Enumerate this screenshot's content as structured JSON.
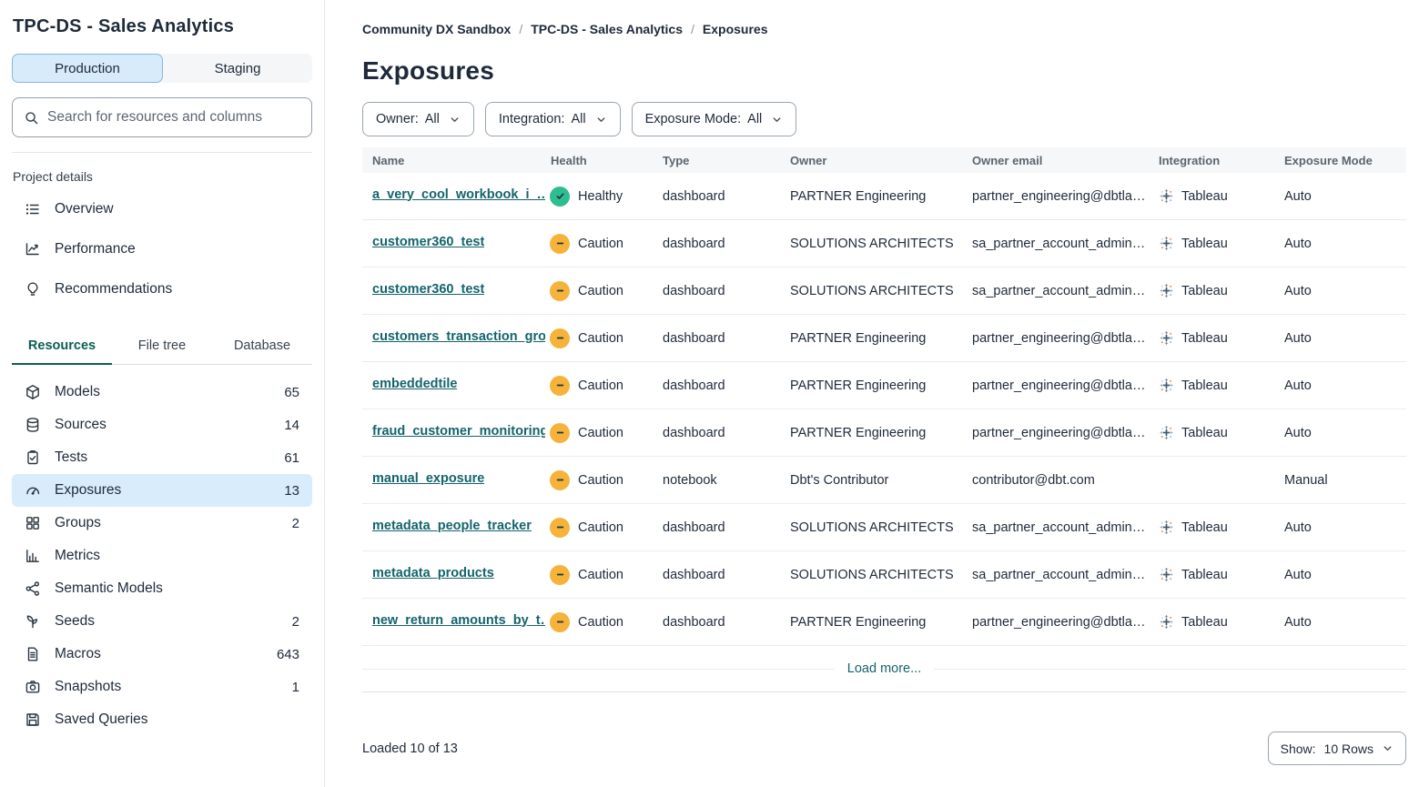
{
  "colors": {
    "link": "#14646b",
    "tab_active": "#0a5f54",
    "selected_bg": "#d9ecfb",
    "healthy": "#2ebd8e",
    "caution": "#f6b239"
  },
  "sidebar": {
    "title": "TPC-DS - Sales Analytics",
    "env_tabs": [
      {
        "label": "Production",
        "active": true
      },
      {
        "label": "Staging",
        "active": false
      }
    ],
    "search_placeholder": "Search for resources and columns",
    "section_label": "Project details",
    "project_links": [
      {
        "label": "Overview",
        "icon": "list-icon"
      },
      {
        "label": "Performance",
        "icon": "chart-line-icon"
      },
      {
        "label": "Recommendations",
        "icon": "lightbulb-icon"
      }
    ],
    "tabs": [
      {
        "label": "Resources",
        "active": true
      },
      {
        "label": "File tree",
        "active": false
      },
      {
        "label": "Database",
        "active": false
      }
    ],
    "resources": [
      {
        "label": "Models",
        "count": "65",
        "icon": "cube-icon",
        "selected": false
      },
      {
        "label": "Sources",
        "count": "14",
        "icon": "database-icon",
        "selected": false
      },
      {
        "label": "Tests",
        "count": "61",
        "icon": "clipboard-check-icon",
        "selected": false
      },
      {
        "label": "Exposures",
        "count": "13",
        "icon": "gauge-icon",
        "selected": true
      },
      {
        "label": "Groups",
        "count": "2",
        "icon": "grid-icon",
        "selected": false
      },
      {
        "label": "Metrics",
        "count": "",
        "icon": "bar-chart-icon",
        "selected": false
      },
      {
        "label": "Semantic Models",
        "count": "",
        "icon": "network-icon",
        "selected": false
      },
      {
        "label": "Seeds",
        "count": "2",
        "icon": "seedling-icon",
        "selected": false
      },
      {
        "label": "Macros",
        "count": "643",
        "icon": "document-icon",
        "selected": false
      },
      {
        "label": "Snapshots",
        "count": "1",
        "icon": "camera-icon",
        "selected": false
      },
      {
        "label": "Saved Queries",
        "count": "",
        "icon": "save-icon",
        "selected": false
      }
    ]
  },
  "main": {
    "breadcrumb": [
      {
        "label": "Community DX Sandbox",
        "current": false
      },
      {
        "label": "TPC-DS - Sales Analytics",
        "current": false
      },
      {
        "label": "Exposures",
        "current": true
      }
    ],
    "title": "Exposures",
    "filters": [
      {
        "label": "Owner:",
        "value": "All"
      },
      {
        "label": "Integration:",
        "value": "All"
      },
      {
        "label": "Exposure Mode:",
        "value": "All"
      }
    ],
    "table": {
      "columns": [
        "Name",
        "Health",
        "Type",
        "Owner",
        "Owner email",
        "Integration",
        "Exposure Mode"
      ],
      "rows": [
        {
          "name": "a_very_cool_workbook_i_…",
          "health": "Healthy",
          "type": "dashboard",
          "owner": "PARTNER Engineering",
          "email": "partner_engineering@dbtla…",
          "integration": "Tableau",
          "mode": "Auto"
        },
        {
          "name": "customer360_test",
          "health": "Caution",
          "type": "dashboard",
          "owner": "SOLUTIONS ARCHITECTS",
          "email": "sa_partner_account_admin…",
          "integration": "Tableau",
          "mode": "Auto"
        },
        {
          "name": "customer360_test",
          "health": "Caution",
          "type": "dashboard",
          "owner": "SOLUTIONS ARCHITECTS",
          "email": "sa_partner_account_admin…",
          "integration": "Tableau",
          "mode": "Auto"
        },
        {
          "name": "customers_transaction_gro…",
          "health": "Caution",
          "type": "dashboard",
          "owner": "PARTNER Engineering",
          "email": "partner_engineering@dbtla…",
          "integration": "Tableau",
          "mode": "Auto"
        },
        {
          "name": "embeddedtile",
          "health": "Caution",
          "type": "dashboard",
          "owner": "PARTNER Engineering",
          "email": "partner_engineering@dbtla…",
          "integration": "Tableau",
          "mode": "Auto"
        },
        {
          "name": "fraud_customer_monitoring",
          "health": "Caution",
          "type": "dashboard",
          "owner": "PARTNER Engineering",
          "email": "partner_engineering@dbtla…",
          "integration": "Tableau",
          "mode": "Auto"
        },
        {
          "name": "manual_exposure",
          "health": "Caution",
          "type": "notebook",
          "owner": "Dbt's Contributor",
          "email": "contributor@dbt.com",
          "integration": "",
          "mode": "Manual"
        },
        {
          "name": "metadata_people_tracker",
          "health": "Caution",
          "type": "dashboard",
          "owner": "SOLUTIONS ARCHITECTS",
          "email": "sa_partner_account_admin…",
          "integration": "Tableau",
          "mode": "Auto"
        },
        {
          "name": "metadata_products",
          "health": "Caution",
          "type": "dashboard",
          "owner": "SOLUTIONS ARCHITECTS",
          "email": "sa_partner_account_admin…",
          "integration": "Tableau",
          "mode": "Auto"
        },
        {
          "name": "new_return_amounts_by_t…",
          "health": "Caution",
          "type": "dashboard",
          "owner": "PARTNER Engineering",
          "email": "partner_engineering@dbtla…",
          "integration": "Tableau",
          "mode": "Auto"
        }
      ]
    },
    "load_more_label": "Load more...",
    "footer": {
      "loaded_label": "Loaded 10 of 13",
      "show_label": "Show:",
      "show_value": "10 Rows"
    }
  }
}
